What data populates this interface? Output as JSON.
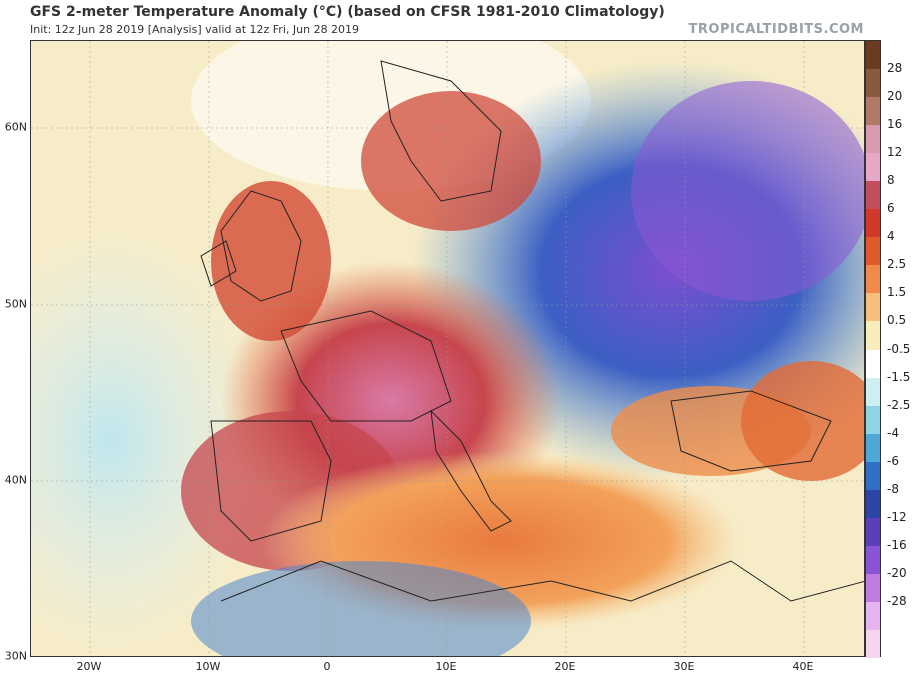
{
  "header": {
    "title": "GFS 2-meter Temperature Anomaly (°C) (based on CFSR 1981-2010 Climatology)",
    "subtitle": "Init: 12z Jun 28 2019   [Analysis]   valid at 12z Fri, Jun 28 2019",
    "brand": "TROPICALTIDBITS.COM"
  },
  "map": {
    "lat_labels": [
      "60N",
      "50N",
      "40N",
      "30N"
    ],
    "lon_labels": [
      "20W",
      "10W",
      "0",
      "10E",
      "20E",
      "30E",
      "40E"
    ]
  },
  "colorbar": {
    "labels": [
      "28",
      "20",
      "16",
      "12",
      "8",
      "6",
      "4",
      "2.5",
      "1.5",
      "0.5",
      "-0.5",
      "-1.5",
      "-2.5",
      "-4",
      "-6",
      "-8",
      "-12",
      "-16",
      "-20",
      "-28"
    ],
    "colors": [
      "#6b3a1f",
      "#8a5a3c",
      "#b07a66",
      "#d69bb0",
      "#e7a7c9",
      "#c24d5e",
      "#d0382a",
      "#e05a2b",
      "#f08a4a",
      "#f6c07a",
      "#f8ecbd",
      "#ffffff",
      "#cdeff2",
      "#8fd4e4",
      "#4fa6d8",
      "#2f6fc4",
      "#2d46a6",
      "#5a3fb8",
      "#8a55d4",
      "#c07be0",
      "#e6b4ee",
      "#f4d4ee"
    ],
    "range": [
      -28,
      28
    ]
  }
}
